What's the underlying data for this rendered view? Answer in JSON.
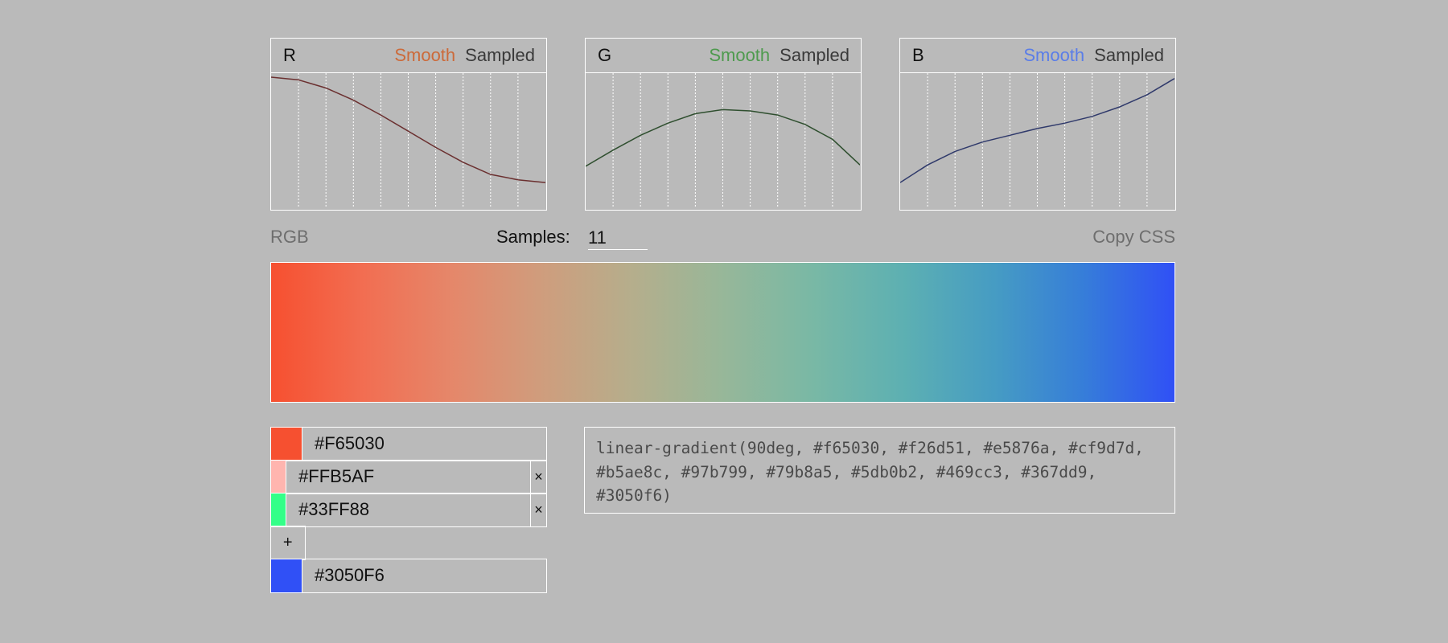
{
  "panels": [
    {
      "channel": "R",
      "smooth_label": "Smooth",
      "sampled_label": "Sampled",
      "accent": "#cc6a3a",
      "curve_color": "#6b3030",
      "values": [
        0.97,
        0.95,
        0.89,
        0.8,
        0.69,
        0.57,
        0.45,
        0.34,
        0.25,
        0.21,
        0.19
      ]
    },
    {
      "channel": "G",
      "smooth_label": "Smooth",
      "sampled_label": "Sampled",
      "accent": "#4e9a4e",
      "curve_color": "#2f4f2f",
      "values": [
        0.31,
        0.43,
        0.54,
        0.63,
        0.7,
        0.73,
        0.72,
        0.69,
        0.62,
        0.51,
        0.32
      ]
    },
    {
      "channel": "B",
      "smooth_label": "Smooth",
      "sampled_label": "Sampled",
      "accent": "#5a7de8",
      "curve_color": "#303a6b",
      "values": [
        0.19,
        0.32,
        0.42,
        0.49,
        0.54,
        0.59,
        0.63,
        0.68,
        0.75,
        0.84,
        0.96
      ]
    }
  ],
  "controls": {
    "mode_label": "RGB",
    "samples_label": "Samples:",
    "samples_value": "11",
    "copy_label": "Copy CSS"
  },
  "gradient": {
    "colors": [
      "#f65030",
      "#f26d51",
      "#e5876a",
      "#cf9d7d",
      "#b5ae8c",
      "#97b799",
      "#79b8a5",
      "#5db0b2",
      "#469cc3",
      "#367dd9",
      "#3050f6"
    ]
  },
  "stops": [
    {
      "hex": "#F65030",
      "removable": false
    },
    {
      "hex": "#FFB5AF",
      "removable": true,
      "remove_label": "×"
    },
    {
      "hex": "#33FF88",
      "removable": true,
      "remove_label": "×"
    },
    {
      "hex": "#3050F6",
      "removable": false
    }
  ],
  "add_label": "+",
  "css_output": "linear-gradient(90deg, #f65030, #f26d51, #e5876a, #cf9d7d, #b5ae8c, #97b799, #79b8a5, #5db0b2, #469cc3, #367dd9, #3050f6)"
}
